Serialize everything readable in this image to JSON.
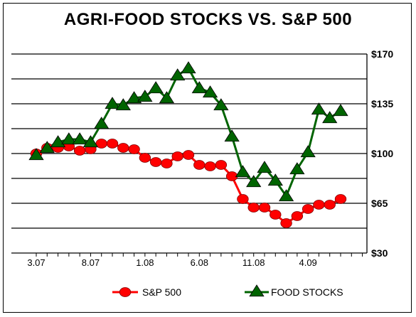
{
  "chart_data": {
    "type": "line",
    "title": "AGRI-FOOD STOCKS VS. S&P 500",
    "xlabel": "",
    "ylabel": "",
    "ylim": [
      30,
      170
    ],
    "y_ticks": [
      {
        "value": 170,
        "label": "$170"
      },
      {
        "value": 135,
        "label": "$135"
      },
      {
        "value": 100,
        "label": "$100"
      },
      {
        "value": 65,
        "label": "$65"
      },
      {
        "value": 30,
        "label": "$30"
      }
    ],
    "gridlines_y": [
      47.5,
      65,
      82.5,
      100,
      117.5,
      135,
      152.5,
      170
    ],
    "x_range": [
      0,
      28
    ],
    "x_ticks": [
      {
        "x": 0,
        "label": "3.07"
      },
      {
        "x": 5,
        "label": "8.07"
      },
      {
        "x": 10,
        "label": "1.08"
      },
      {
        "x": 15,
        "label": "6.08"
      },
      {
        "x": 20,
        "label": "11.08"
      },
      {
        "x": 25,
        "label": "4.09"
      }
    ],
    "grid": true,
    "legend_position": "bottom",
    "series": [
      {
        "name": "S&P 500",
        "color": "#ff0000",
        "marker": "circle",
        "x": [
          0,
          1,
          2,
          3,
          4,
          5,
          6,
          7,
          8,
          9,
          10,
          11,
          12,
          13,
          14,
          15,
          16,
          17,
          18,
          19,
          20,
          21,
          22,
          23,
          24,
          25,
          26,
          27,
          28
        ],
        "values": [
          100,
          104,
          104,
          105,
          102,
          103,
          107,
          107,
          104,
          103,
          97,
          94,
          93,
          98,
          99,
          92,
          91,
          92,
          84,
          68,
          62,
          62,
          57,
          51,
          56,
          61,
          64,
          64,
          68
        ]
      },
      {
        "name": "FOOD STOCKS",
        "color": "#006400",
        "marker": "triangle",
        "x": [
          0,
          1,
          2,
          3,
          4,
          5,
          6,
          7,
          8,
          9,
          10,
          11,
          12,
          13,
          14,
          15,
          16,
          17,
          18,
          19,
          20,
          21,
          22,
          23,
          24,
          25,
          26,
          27,
          28
        ],
        "values": [
          99,
          104,
          108,
          110,
          110,
          108,
          121,
          135,
          134,
          139,
          140,
          146,
          139,
          155,
          160,
          146,
          143,
          134,
          112,
          87,
          80,
          90,
          81,
          70,
          89,
          101,
          131,
          125,
          130
        ]
      }
    ]
  }
}
